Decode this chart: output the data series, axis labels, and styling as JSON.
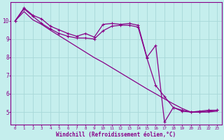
{
  "xlabel": "Windchill (Refroidissement éolien,°C)",
  "bg_color": "#c5eeed",
  "line_color": "#880088",
  "grid_color": "#a8d8d8",
  "xlim": [
    -0.5,
    23.5
  ],
  "ylim": [
    4.3,
    11.0
  ],
  "yticks": [
    5,
    6,
    7,
    8,
    9,
    10
  ],
  "xticks": [
    0,
    1,
    2,
    3,
    4,
    5,
    6,
    7,
    8,
    9,
    10,
    11,
    12,
    13,
    14,
    15,
    16,
    17,
    18,
    19,
    20,
    21,
    22,
    23
  ],
  "series1_x": [
    0,
    1,
    2,
    3,
    4,
    5,
    6,
    7,
    8,
    9,
    10,
    11,
    12,
    13,
    14,
    15,
    16,
    17,
    18,
    19,
    20,
    21,
    22,
    23
  ],
  "series1_y": [
    10.0,
    10.7,
    10.3,
    10.1,
    9.7,
    9.5,
    9.3,
    9.15,
    9.3,
    9.1,
    9.8,
    9.85,
    9.8,
    9.85,
    9.75,
    8.0,
    8.65,
    4.45,
    5.25,
    5.1,
    5.0,
    5.05,
    5.1,
    5.1
  ],
  "series2_x": [
    0,
    1,
    2,
    3,
    4,
    5,
    6,
    7,
    8,
    9,
    10,
    11,
    12,
    13,
    14,
    15,
    16,
    17,
    18,
    19,
    20,
    21,
    22,
    23
  ],
  "series2_y": [
    10.0,
    10.65,
    10.25,
    9.85,
    9.55,
    9.3,
    9.15,
    9.05,
    9.05,
    9.0,
    9.45,
    9.7,
    9.75,
    9.75,
    9.65,
    7.95,
    6.45,
    5.85,
    5.25,
    5.05,
    5.0,
    5.0,
    5.05,
    5.1
  ],
  "series3_x": [
    0,
    1,
    2,
    3,
    4,
    5,
    6,
    7,
    8,
    9,
    10,
    11,
    12,
    13,
    14,
    15,
    16,
    17,
    18,
    19,
    20,
    21,
    22,
    23
  ],
  "series3_y": [
    10.0,
    10.5,
    10.05,
    9.8,
    9.48,
    9.18,
    8.88,
    8.58,
    8.28,
    7.98,
    7.72,
    7.43,
    7.14,
    6.85,
    6.56,
    6.27,
    6.0,
    5.72,
    5.45,
    5.2,
    5.0,
    5.0,
    5.0,
    5.05
  ]
}
